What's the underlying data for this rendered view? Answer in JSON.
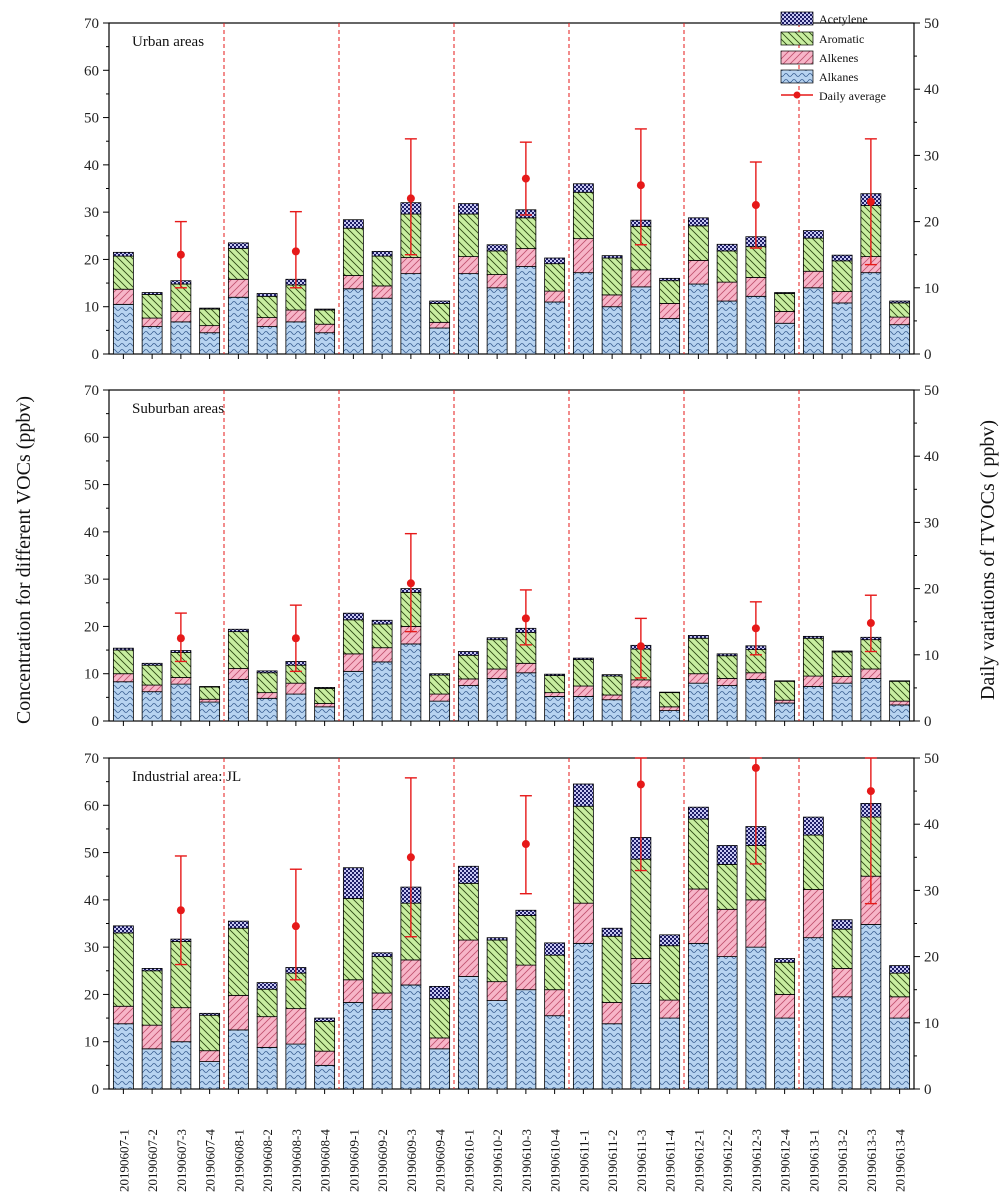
{
  "chart_data": {
    "type": "bar",
    "stacked": true,
    "y_left_label": "Concentration for different VOCs (ppbv)",
    "y_right_label": "Daily variations of TVOCs ( ppbv)",
    "ylim_left": [
      0,
      70
    ],
    "ylim_right": [
      0,
      50
    ],
    "left_ticks": [
      0,
      10,
      20,
      30,
      40,
      50,
      60,
      70
    ],
    "right_ticks": [
      0,
      10,
      20,
      30,
      40,
      50
    ],
    "legend_position": "top-right",
    "legend": [
      "Acetylene",
      "Aromatic",
      "Alkenes",
      "Alkanes",
      "Daily average"
    ],
    "categories": [
      "20190607-1",
      "20190607-2",
      "20190607-3",
      "20190607-4",
      "20190608-1",
      "20190608-2",
      "20190608-3",
      "20190608-4",
      "20190609-1",
      "20190609-2",
      "20190609-3",
      "20190609-4",
      "20190610-1",
      "20190610-2",
      "20190610-3",
      "20190610-4",
      "20190611-1",
      "20190611-2",
      "20190611-3",
      "20190611-4",
      "20190612-1",
      "20190612-2",
      "20190612-3",
      "20190612-4",
      "20190613-1",
      "20190613-2",
      "20190613-3",
      "20190613-4"
    ],
    "colors": {
      "alkanes": "#b7d3f0",
      "alkenes": "#f7b5c8",
      "aromatic": "#c8eea0",
      "acetylene": "#c8c8f4",
      "average": "#e61919",
      "day_divider": "#e61919"
    },
    "panels": [
      {
        "title": "Urban areas",
        "alkanes": [
          10.5,
          5.8,
          6.8,
          4.5,
          12.0,
          5.8,
          6.8,
          4.5,
          13.8,
          11.8,
          17.0,
          5.5,
          17.0,
          14.0,
          18.5,
          11.0,
          17.2,
          10.0,
          14.2,
          7.5,
          14.8,
          11.2,
          12.2,
          6.5,
          14.0,
          10.8,
          17.2,
          6.2
        ],
        "alkenes": [
          3.2,
          1.8,
          2.2,
          1.5,
          3.8,
          1.9,
          2.5,
          1.8,
          2.8,
          2.6,
          3.4,
          1.2,
          3.6,
          2.8,
          3.8,
          2.3,
          7.2,
          2.5,
          3.6,
          3.2,
          5.0,
          4.0,
          4.0,
          2.5,
          3.5,
          2.4,
          3.4,
          1.6
        ],
        "aromatic": [
          7.0,
          5.0,
          5.8,
          3.5,
          6.5,
          4.5,
          5.3,
          3.0,
          10.0,
          6.3,
          9.2,
          4.0,
          9.0,
          5.0,
          6.5,
          5.8,
          9.8,
          7.8,
          9.2,
          4.8,
          7.3,
          6.6,
          6.5,
          3.8,
          7.0,
          6.5,
          10.8,
          3.0
        ],
        "acetylene": [
          0.8,
          0.4,
          0.7,
          0.2,
          1.2,
          0.6,
          1.2,
          0.2,
          1.8,
          1.0,
          2.4,
          0.5,
          2.2,
          1.3,
          1.7,
          1.2,
          1.8,
          0.5,
          1.3,
          0.5,
          1.7,
          1.4,
          2.1,
          0.2,
          1.6,
          1.2,
          2.5,
          0.4
        ],
        "daily_average": [
          {
            "index": 2,
            "value": 15.0,
            "low": 10.0,
            "high": 20.0
          },
          {
            "index": 6,
            "value": 15.5,
            "low": 10.0,
            "high": 21.5
          },
          {
            "index": 10,
            "value": 23.5,
            "low": 15.0,
            "high": 32.5
          },
          {
            "index": 14,
            "value": 26.5,
            "low": 21.0,
            "high": 32.0
          },
          {
            "index": 18,
            "value": 25.5,
            "low": 16.5,
            "high": 34.0
          },
          {
            "index": 22,
            "value": 22.5,
            "low": 16.0,
            "high": 29.0
          },
          {
            "index": 26,
            "value": 23.0,
            "low": 13.5,
            "high": 32.5
          }
        ]
      },
      {
        "title": "Suburban areas",
        "alkanes": [
          8.3,
          6.2,
          7.8,
          4.0,
          8.8,
          4.8,
          5.7,
          3.0,
          10.5,
          12.5,
          16.3,
          4.2,
          7.5,
          9.0,
          10.2,
          5.2,
          5.2,
          4.5,
          7.2,
          2.2,
          8.0,
          7.5,
          8.8,
          3.8,
          7.3,
          8.0,
          9.0,
          3.4
        ],
        "alkenes": [
          1.7,
          1.4,
          1.4,
          0.6,
          2.3,
          1.2,
          2.3,
          0.7,
          3.7,
          3.0,
          3.7,
          1.5,
          1.4,
          2.0,
          2.0,
          0.8,
          2.2,
          1.0,
          1.5,
          0.8,
          2.0,
          1.5,
          1.4,
          0.6,
          2.2,
          1.4,
          2.0,
          0.8
        ],
        "aromatic": [
          5.0,
          4.2,
          5.3,
          2.6,
          7.8,
          4.2,
          3.8,
          3.2,
          7.2,
          5.0,
          7.2,
          4.0,
          5.0,
          6.2,
          6.5,
          3.6,
          5.6,
          4.0,
          6.5,
          3.0,
          7.5,
          4.8,
          4.9,
          4.0,
          8.0,
          5.2,
          6.2,
          4.2
        ],
        "acetylene": [
          0.4,
          0.4,
          0.4,
          0.1,
          0.5,
          0.4,
          0.8,
          0.2,
          1.4,
          0.8,
          0.8,
          0.3,
          0.8,
          0.4,
          0.9,
          0.3,
          0.3,
          0.3,
          0.8,
          0.1,
          0.6,
          0.4,
          0.8,
          0.1,
          0.4,
          0.2,
          0.5,
          0.1
        ],
        "daily_average": [
          {
            "index": 2,
            "value": 12.5,
            "low": 9.0,
            "high": 16.3
          },
          {
            "index": 6,
            "value": 12.5,
            "low": 7.5,
            "high": 17.5
          },
          {
            "index": 10,
            "value": 20.8,
            "low": 13.5,
            "high": 28.3
          },
          {
            "index": 14,
            "value": 15.5,
            "low": 11.5,
            "high": 19.8
          },
          {
            "index": 18,
            "value": 11.3,
            "low": 6.5,
            "high": 15.5
          },
          {
            "index": 22,
            "value": 14.0,
            "low": 10.0,
            "high": 18.0
          },
          {
            "index": 26,
            "value": 14.8,
            "low": 10.5,
            "high": 19.0
          }
        ]
      },
      {
        "title": "Industrial area: JL",
        "alkanes": [
          13.8,
          8.5,
          10.0,
          5.8,
          12.5,
          8.8,
          9.5,
          5.0,
          18.3,
          16.8,
          22.0,
          8.5,
          23.8,
          18.7,
          21.0,
          15.5,
          30.8,
          13.8,
          22.3,
          15.0,
          30.8,
          28.0,
          30.0,
          15.0,
          32.0,
          19.5,
          34.8,
          15.0
        ],
        "alkenes": [
          3.7,
          5.0,
          7.2,
          2.3,
          7.3,
          6.5,
          7.5,
          3.0,
          4.8,
          3.5,
          5.3,
          2.3,
          7.7,
          4.0,
          5.2,
          5.5,
          8.5,
          4.5,
          5.3,
          3.8,
          11.5,
          10.0,
          10.0,
          5.0,
          10.2,
          6.0,
          10.2,
          4.5
        ],
        "aromatic": [
          15.5,
          11.5,
          14.0,
          7.5,
          14.2,
          5.8,
          7.5,
          6.3,
          17.2,
          7.7,
          12.0,
          8.3,
          12.0,
          8.8,
          10.5,
          7.3,
          20.5,
          14.0,
          21.0,
          11.5,
          14.8,
          9.5,
          11.5,
          6.8,
          11.5,
          8.3,
          12.5,
          5.0
        ],
        "acetylene": [
          1.5,
          0.5,
          0.5,
          0.4,
          1.5,
          1.4,
          1.2,
          0.7,
          6.5,
          0.8,
          3.4,
          2.6,
          3.6,
          0.5,
          1.1,
          2.6,
          4.7,
          1.7,
          4.6,
          2.3,
          2.5,
          4.0,
          4.0,
          0.8,
          3.8,
          2.0,
          2.9,
          1.6
        ],
        "daily_average": [
          {
            "index": 2,
            "value": 27.0,
            "low": 18.8,
            "high": 35.2
          },
          {
            "index": 6,
            "value": 24.6,
            "low": 16.5,
            "high": 33.2
          },
          {
            "index": 10,
            "value": 35.0,
            "low": 23.0,
            "high": 47.0
          },
          {
            "index": 14,
            "value": 37.0,
            "low": 29.5,
            "high": 44.3
          },
          {
            "index": 18,
            "value": 46.0,
            "low": 33.0,
            "high": 50.0
          },
          {
            "index": 22,
            "value": 48.5,
            "low": 34.0,
            "high": 50.0
          },
          {
            "index": 26,
            "value": 45.0,
            "low": 28.0,
            "high": 50.0
          }
        ]
      }
    ]
  }
}
